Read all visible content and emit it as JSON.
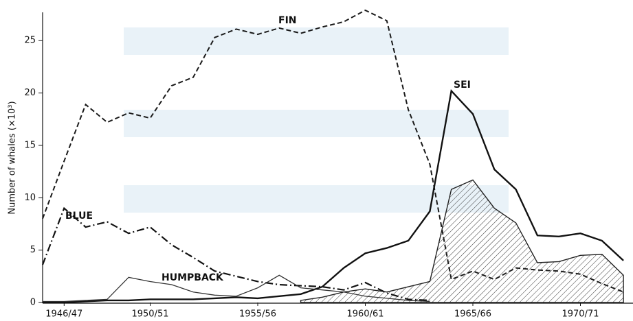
{
  "chart_data": {
    "type": "line",
    "y_label": "Number of whales (×10³)",
    "categories": [
      null,
      "1946/47",
      null,
      null,
      null,
      "1950/51",
      null,
      null,
      null,
      null,
      "1955/56",
      null,
      null,
      null,
      null,
      "1960/61",
      null,
      null,
      null,
      null,
      "1965/66",
      null,
      null,
      null,
      null,
      "1970/71",
      null,
      null
    ],
    "series": [
      {
        "name": "FIN",
        "color": "#1a1a1a",
        "dash": "dashed",
        "values": [
          8.0,
          13.5,
          18.9,
          17.2,
          18.1,
          17.6,
          20.7,
          21.5,
          25.3,
          26.1,
          25.6,
          26.2,
          25.7,
          26.3,
          26.8,
          27.9,
          26.9,
          18.4,
          13.2,
          2.2,
          3.0,
          2.2,
          3.3,
          3.1,
          3.0,
          2.7,
          1.8,
          1.0
        ]
      },
      {
        "name": "SEI",
        "color": "#111111",
        "dash": "solid-bold",
        "values": [
          0,
          0,
          0.1,
          0.2,
          0.2,
          0.3,
          0.3,
          0.3,
          0.4,
          0.5,
          0.4,
          0.6,
          0.8,
          1.5,
          3.3,
          4.7,
          5.2,
          5.9,
          8.7,
          20.2,
          18.0,
          12.7,
          10.8,
          6.4,
          6.3,
          6.6,
          5.9,
          4.0
        ]
      },
      {
        "name": "BLUE",
        "color": "#111111",
        "dash": "dash-dot",
        "values": [
          3.6,
          9.0,
          7.2,
          7.7,
          6.6,
          7.2,
          5.5,
          4.3,
          3.0,
          2.5,
          2.0,
          1.7,
          1.6,
          1.5,
          1.2,
          1.9,
          0.9,
          0.3,
          0.2,
          null,
          null,
          null,
          null,
          null,
          null,
          null,
          null,
          null
        ]
      },
      {
        "name": "HUMPBACK",
        "color": "#333333",
        "dash": "solid-thin",
        "values": [
          0.1,
          0.1,
          0.2,
          0.3,
          2.4,
          2.0,
          1.7,
          1.0,
          0.7,
          0.6,
          1.4,
          2.6,
          1.4,
          1.2,
          1.0,
          0.6,
          0.4,
          0.2,
          0.1,
          null,
          null,
          null,
          null,
          null,
          null,
          null,
          null,
          null
        ]
      },
      {
        "color": "#222222",
        "dash": "hatch",
        "values": [
          null,
          null,
          null,
          null,
          null,
          null,
          null,
          null,
          null,
          null,
          null,
          null,
          0.2,
          0.5,
          1.0,
          1.3,
          1.0,
          1.5,
          2.0,
          10.8,
          11.7,
          9.0,
          7.6,
          3.8,
          3.9,
          4.5,
          4.6,
          2.6
        ]
      }
    ],
    "ylim": [
      0,
      27.7
    ],
    "yticks": [
      0,
      5,
      10,
      15,
      20,
      25
    ]
  }
}
